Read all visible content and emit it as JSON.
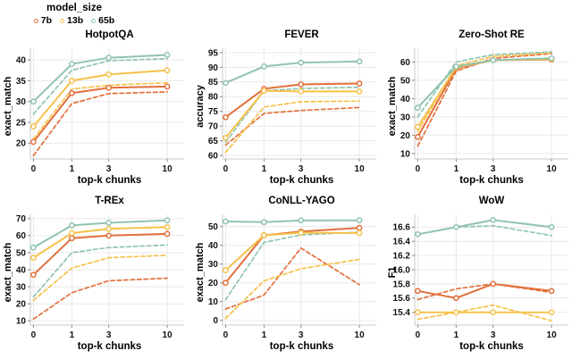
{
  "legend": {
    "title": "model_size",
    "items": [
      {
        "label": "7b",
        "color": "#e1703b"
      },
      {
        "label": "13b",
        "color": "#f6c14b"
      },
      {
        "label": "65b",
        "color": "#8fc4af"
      }
    ],
    "palette": {
      "7b": "#e1703b",
      "13b": "#f6c14b",
      "65b": "#8fc4af"
    }
  },
  "style_colors": {
    "grid": "#e9e9e9",
    "spine": "#c8c8c8",
    "tick": "#888888",
    "marker_fill": "#ffffff"
  },
  "chart_data": [
    {
      "type": "line",
      "key": "hotpotqa",
      "title": "HotpotQA",
      "xlabel": "top-k chunks",
      "ylabel": "exact_match",
      "x": [
        "0",
        "1",
        "3",
        "10"
      ],
      "yticks": [
        20,
        25,
        30,
        35,
        40
      ],
      "ytick_labels": [
        "20",
        "25",
        "30",
        "35",
        "40"
      ],
      "ylim": [
        16.2,
        42.8
      ],
      "series": [
        {
          "name": "7b",
          "style": "solid",
          "values": [
            20.3,
            32.0,
            33.3,
            33.6
          ]
        },
        {
          "name": "7b",
          "style": "dashed",
          "values": [
            17.0,
            29.5,
            31.9,
            32.3
          ]
        },
        {
          "name": "13b",
          "style": "solid",
          "values": [
            24.0,
            35.0,
            36.5,
            37.5
          ]
        },
        {
          "name": "13b",
          "style": "dashed",
          "values": [
            21.0,
            33.0,
            33.9,
            34.5
          ]
        },
        {
          "name": "65b",
          "style": "solid",
          "values": [
            30.0,
            39.0,
            40.5,
            41.2
          ]
        },
        {
          "name": "65b",
          "style": "dashed",
          "values": [
            27.0,
            37.5,
            39.8,
            40.3
          ]
        }
      ]
    },
    {
      "type": "line",
      "key": "fever",
      "title": "FEVER",
      "xlabel": "top-k chunks",
      "ylabel": "accuracy",
      "x": [
        "0",
        "1",
        "3",
        "10"
      ],
      "yticks": [
        60,
        65,
        70,
        75,
        80,
        85,
        90,
        95
      ],
      "ytick_labels": [
        "60",
        "65",
        "70",
        "75",
        "80",
        "85",
        "90",
        "95"
      ],
      "ylim": [
        58.8,
        96.5
      ],
      "series": [
        {
          "name": "7b",
          "style": "solid",
          "values": [
            73.0,
            82.7,
            84.2,
            84.5
          ]
        },
        {
          "name": "7b",
          "style": "dashed",
          "values": [
            63.5,
            74.3,
            75.3,
            76.3
          ]
        },
        {
          "name": "13b",
          "style": "solid",
          "values": [
            66.0,
            82.0,
            81.8,
            81.8
          ]
        },
        {
          "name": "13b",
          "style": "dashed",
          "values": [
            61.0,
            76.5,
            78.3,
            78.5
          ]
        },
        {
          "name": "65b",
          "style": "solid",
          "values": [
            84.7,
            90.3,
            91.6,
            92.0
          ]
        },
        {
          "name": "65b",
          "style": "dashed",
          "values": [
            64.5,
            82.0,
            82.8,
            83.2
          ]
        }
      ]
    },
    {
      "type": "line",
      "key": "zero-shot-re",
      "title": "Zero-Shot RE",
      "xlabel": "top-k chunks",
      "ylabel": "exact_match",
      "x": [
        "0",
        "1",
        "3",
        "10"
      ],
      "yticks": [
        10,
        20,
        30,
        40,
        50,
        60
      ],
      "ytick_labels": [
        "10",
        "20",
        "30",
        "40",
        "50",
        "60"
      ],
      "ylim": [
        7.0,
        67.5
      ],
      "series": [
        {
          "name": "7b",
          "style": "solid",
          "values": [
            19.0,
            56.5,
            61.0,
            61.3
          ]
        },
        {
          "name": "7b",
          "style": "dashed",
          "values": [
            14.0,
            55.0,
            62.0,
            64.5
          ]
        },
        {
          "name": "13b",
          "style": "solid",
          "values": [
            24.5,
            57.0,
            61.0,
            61.5
          ]
        },
        {
          "name": "13b",
          "style": "dashed",
          "values": [
            22.0,
            58.0,
            63.0,
            65.0
          ]
        },
        {
          "name": "65b",
          "style": "solid",
          "values": [
            35.0,
            57.5,
            61.0,
            62.0
          ]
        },
        {
          "name": "65b",
          "style": "dashed",
          "values": [
            30.0,
            60.0,
            64.0,
            65.5
          ]
        }
      ]
    },
    {
      "type": "line",
      "key": "t-rex",
      "title": "T-REx",
      "xlabel": "top-k chunks",
      "ylabel": "exact_match",
      "x": [
        "0",
        "1",
        "3",
        "10"
      ],
      "yticks": [
        10,
        20,
        30,
        40,
        50,
        60,
        70
      ],
      "ytick_labels": [
        "10",
        "20",
        "30",
        "40",
        "50",
        "60",
        "70"
      ],
      "ylim": [
        7.5,
        72.5
      ],
      "series": [
        {
          "name": "7b",
          "style": "solid",
          "values": [
            37.0,
            58.5,
            60.0,
            61.0
          ]
        },
        {
          "name": "7b",
          "style": "dashed",
          "values": [
            11.0,
            26.5,
            33.5,
            35.0
          ]
        },
        {
          "name": "13b",
          "style": "solid",
          "values": [
            47.0,
            61.5,
            64.0,
            65.0
          ]
        },
        {
          "name": "13b",
          "style": "dashed",
          "values": [
            22.0,
            41.0,
            47.0,
            48.5
          ]
        },
        {
          "name": "65b",
          "style": "solid",
          "values": [
            53.0,
            66.0,
            67.5,
            69.0
          ]
        },
        {
          "name": "65b",
          "style": "dashed",
          "values": [
            24.0,
            50.0,
            53.0,
            54.5
          ]
        }
      ]
    },
    {
      "type": "line",
      "key": "conll-yago",
      "title": "CoNLL-YAGO",
      "xlabel": "top-k chunks",
      "ylabel": "exact_match",
      "x": [
        "0",
        "1",
        "3",
        "10"
      ],
      "yticks": [
        0,
        10,
        20,
        30,
        40,
        50
      ],
      "ytick_labels": [
        "0",
        "10",
        "20",
        "30",
        "40",
        "50"
      ],
      "ylim": [
        -2.5,
        56.5
      ],
      "series": [
        {
          "name": "7b",
          "style": "solid",
          "values": [
            20.0,
            45.3,
            47.3,
            49.3
          ]
        },
        {
          "name": "7b",
          "style": "dashed",
          "values": [
            6.0,
            13.5,
            38.5,
            19.0
          ]
        },
        {
          "name": "13b",
          "style": "solid",
          "values": [
            26.7,
            45.3,
            46.7,
            46.5
          ]
        },
        {
          "name": "13b",
          "style": "dashed",
          "values": [
            1.0,
            21.0,
            27.5,
            32.5
          ]
        },
        {
          "name": "65b",
          "style": "solid",
          "values": [
            52.7,
            52.3,
            53.2,
            53.3
          ]
        },
        {
          "name": "65b",
          "style": "dashed",
          "values": [
            11.0,
            41.5,
            45.5,
            47.0
          ]
        }
      ]
    },
    {
      "type": "line",
      "key": "wow",
      "title": "WoW",
      "xlabel": "top-k chunks",
      "ylabel": "F1",
      "x": [
        "0",
        "1",
        "3",
        "10"
      ],
      "yticks": [
        15.4,
        15.6,
        15.8,
        16.0,
        16.2,
        16.4,
        16.6
      ],
      "ytick_labels": [
        "15.4",
        "15.6",
        "15.8",
        "16.0",
        "16.2",
        "16.4",
        "16.6"
      ],
      "ylim": [
        15.22,
        16.78
      ],
      "series": [
        {
          "name": "7b",
          "style": "solid",
          "values": [
            15.7,
            15.6,
            15.8,
            15.7
          ]
        },
        {
          "name": "7b",
          "style": "dashed",
          "values": [
            15.58,
            15.73,
            15.8,
            15.68
          ]
        },
        {
          "name": "13b",
          "style": "solid",
          "values": [
            15.4,
            15.4,
            15.4,
            15.4
          ]
        },
        {
          "name": "13b",
          "style": "dashed",
          "values": [
            15.3,
            15.4,
            15.5,
            15.28
          ]
        },
        {
          "name": "65b",
          "style": "solid",
          "values": [
            16.5,
            16.6,
            16.7,
            16.6
          ]
        },
        {
          "name": "65b",
          "style": "dashed",
          "values": [
            16.5,
            16.6,
            16.62,
            16.48
          ]
        }
      ]
    }
  ]
}
